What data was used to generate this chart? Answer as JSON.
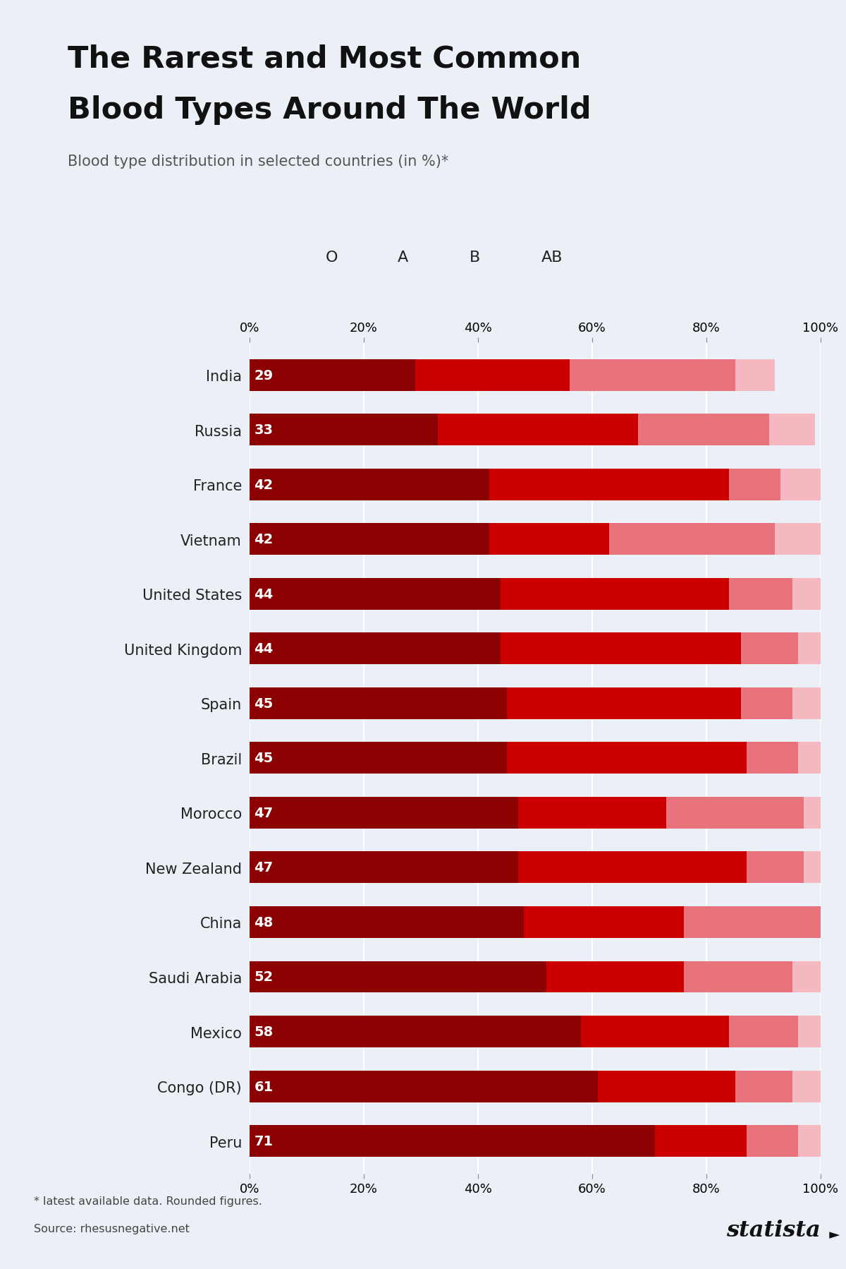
{
  "title_line1": "The Rarest and Most Common",
  "title_line2": "Blood Types Around The World",
  "subtitle": "Blood type distribution in selected countries (in %)*",
  "footnote1": "* latest available data. Rounded figures.",
  "footnote2": "Source: rhesusnegative.net",
  "countries": [
    "Peru",
    "Congo (DR)",
    "Mexico",
    "Saudi Arabia",
    "China",
    "New Zealand",
    "Morocco",
    "Brazil",
    "Spain",
    "United Kingdom",
    "United States",
    "Vietnam",
    "France",
    "Russia",
    "India"
  ],
  "O": [
    71,
    61,
    58,
    52,
    48,
    47,
    47,
    45,
    45,
    44,
    44,
    42,
    42,
    33,
    29
  ],
  "A": [
    16,
    24,
    26,
    24,
    28,
    40,
    26,
    42,
    41,
    42,
    40,
    21,
    42,
    35,
    27
  ],
  "B": [
    9,
    10,
    12,
    19,
    29,
    10,
    24,
    9,
    9,
    10,
    11,
    29,
    9,
    23,
    29
  ],
  "AB": [
    4,
    5,
    4,
    5,
    5,
    3,
    3,
    4,
    5,
    4,
    5,
    8,
    7,
    8,
    7
  ],
  "color_O": "#8B0000",
  "color_A": "#CC0000",
  "color_B": "#E8737D",
  "color_AB": "#F5B8C0",
  "bg_color": "#EBF0F7",
  "accent_color": "#F08080",
  "bar_height": 0.58,
  "title_fontsize": 31,
  "subtitle_fontsize": 15,
  "label_fontsize": 15,
  "tick_fontsize": 13,
  "legend_fontsize": 16,
  "value_fontsize": 14
}
